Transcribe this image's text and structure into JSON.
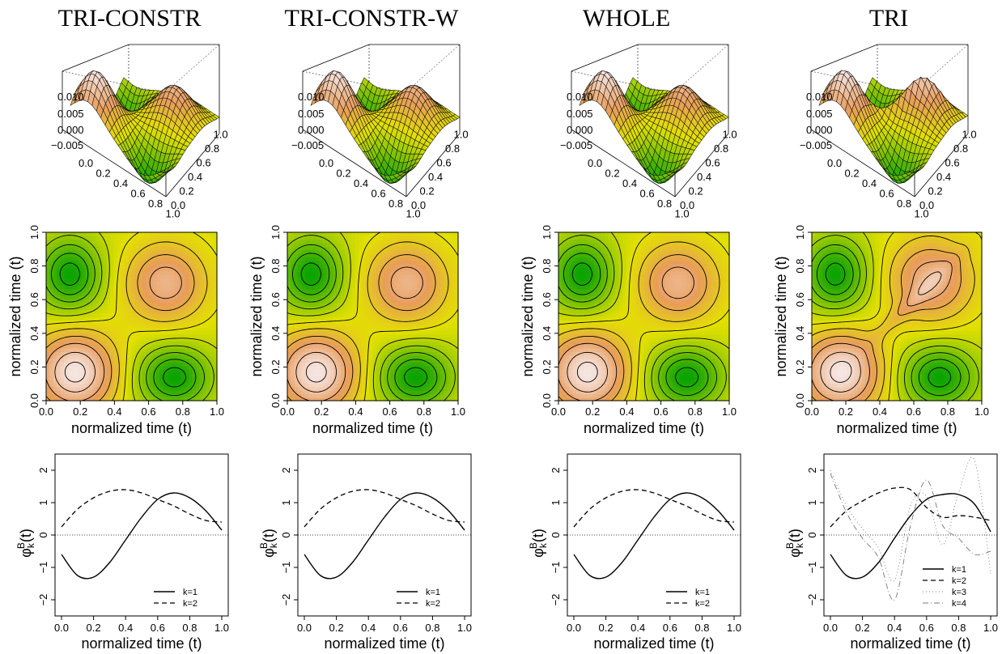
{
  "columns": [
    {
      "title": "TRI-CONSTR",
      "variant": "smooth",
      "num_k": 2
    },
    {
      "title": "TRI-CONSTR-W",
      "variant": "smooth",
      "num_k": 2
    },
    {
      "title": "WHOLE",
      "variant": "smooth",
      "num_k": 2
    },
    {
      "title": "TRI",
      "variant": "tri",
      "num_k": 4
    }
  ],
  "surface": {
    "z_ticks": [
      "0.010",
      "0.005",
      "0.000",
      "−0.005"
    ],
    "x_ticks": [
      "0.0",
      "0.2",
      "0.4",
      "0.6",
      "0.8",
      "1.0"
    ],
    "y_ticks": [
      "0.0",
      "0.2",
      "0.4",
      "0.6",
      "0.8",
      "1.0"
    ]
  },
  "contour": {
    "x_label": "normalized time (t)",
    "y_label": "normalized time (t)",
    "ticks": [
      "0.0",
      "0.2",
      "0.4",
      "0.6",
      "0.8",
      "1.0"
    ],
    "colors": {
      "low": "#00a000",
      "mid": "#e3e000",
      "high": "#f6e5e2"
    }
  },
  "eigen": {
    "x_label": "normalized time (t)",
    "y_label": "φk B(t)",
    "x_ticks": [
      "0.0",
      "0.2",
      "0.4",
      "0.6",
      "0.8",
      "1.0"
    ],
    "y_ticks": [
      "−2",
      "−1",
      "0",
      "1",
      "2"
    ],
    "legend": [
      "k=1",
      "k=2",
      "k=3",
      "k=4"
    ]
  },
  "chart_data": [
    {
      "type": "line",
      "title": "TRI-CONSTR",
      "xlabel": "normalized time (t)",
      "ylabel": "φk B(t)",
      "xlim": [
        0,
        1
      ],
      "ylim": [
        -2.5,
        2.5
      ],
      "x": [
        0,
        0.1,
        0.2,
        0.3,
        0.4,
        0.5,
        0.6,
        0.7,
        0.8,
        0.9,
        1.0
      ],
      "series": [
        {
          "name": "k=1",
          "values": [
            -0.6,
            -1.25,
            -1.3,
            -0.85,
            -0.15,
            0.55,
            1.1,
            1.3,
            1.15,
            0.75,
            0.15
          ]
        },
        {
          "name": "k=2",
          "values": [
            0.25,
            0.8,
            1.15,
            1.35,
            1.4,
            1.3,
            1.1,
            0.9,
            0.65,
            0.45,
            0.4
          ]
        }
      ]
    },
    {
      "type": "line",
      "title": "TRI-CONSTR-W",
      "xlabel": "normalized time (t)",
      "ylabel": "φk B(t)",
      "xlim": [
        0,
        1
      ],
      "ylim": [
        -2.5,
        2.5
      ],
      "x": [
        0,
        0.1,
        0.2,
        0.3,
        0.4,
        0.5,
        0.6,
        0.7,
        0.8,
        0.9,
        1.0
      ],
      "series": [
        {
          "name": "k=1",
          "values": [
            -0.6,
            -1.25,
            -1.3,
            -0.85,
            -0.15,
            0.55,
            1.1,
            1.3,
            1.15,
            0.75,
            0.15
          ]
        },
        {
          "name": "k=2",
          "values": [
            0.25,
            0.8,
            1.15,
            1.35,
            1.4,
            1.3,
            1.1,
            0.9,
            0.65,
            0.45,
            0.4
          ]
        }
      ]
    },
    {
      "type": "line",
      "title": "WHOLE",
      "xlabel": "normalized time (t)",
      "ylabel": "φk B(t)",
      "xlim": [
        0,
        1
      ],
      "ylim": [
        -2.5,
        2.5
      ],
      "x": [
        0,
        0.1,
        0.2,
        0.3,
        0.4,
        0.5,
        0.6,
        0.7,
        0.8,
        0.9,
        1.0
      ],
      "series": [
        {
          "name": "k=1",
          "values": [
            -0.6,
            -1.25,
            -1.3,
            -0.85,
            -0.15,
            0.55,
            1.1,
            1.3,
            1.15,
            0.75,
            0.15
          ]
        },
        {
          "name": "k=2",
          "values": [
            0.25,
            0.8,
            1.15,
            1.35,
            1.4,
            1.3,
            1.1,
            0.9,
            0.65,
            0.45,
            0.4
          ]
        }
      ]
    },
    {
      "type": "line",
      "title": "TRI",
      "xlabel": "normalized time (t)",
      "ylabel": "φk B(t)",
      "xlim": [
        0,
        1
      ],
      "ylim": [
        -2.5,
        2.5
      ],
      "x": [
        0,
        0.1,
        0.2,
        0.3,
        0.4,
        0.5,
        0.6,
        0.7,
        0.8,
        0.9,
        1.0
      ],
      "series": [
        {
          "name": "k=1",
          "values": [
            -0.6,
            -1.25,
            -1.3,
            -0.85,
            -0.1,
            0.6,
            1.1,
            1.25,
            1.25,
            0.95,
            0.1
          ]
        },
        {
          "name": "k=2",
          "values": [
            0.25,
            0.75,
            1.05,
            1.3,
            1.45,
            1.4,
            0.85,
            0.55,
            0.6,
            0.55,
            0.45
          ]
        },
        {
          "name": "k=3",
          "values": [
            2.0,
            0.9,
            0.2,
            -0.4,
            -1.4,
            0.9,
            1.2,
            -0.3,
            1.3,
            2.3,
            -1.2
          ]
        },
        {
          "name": "k=4",
          "values": [
            1.9,
            0.7,
            -0.1,
            -0.7,
            -2.0,
            0.3,
            1.7,
            0.3,
            -0.1,
            -0.6,
            -0.5
          ]
        }
      ]
    }
  ]
}
